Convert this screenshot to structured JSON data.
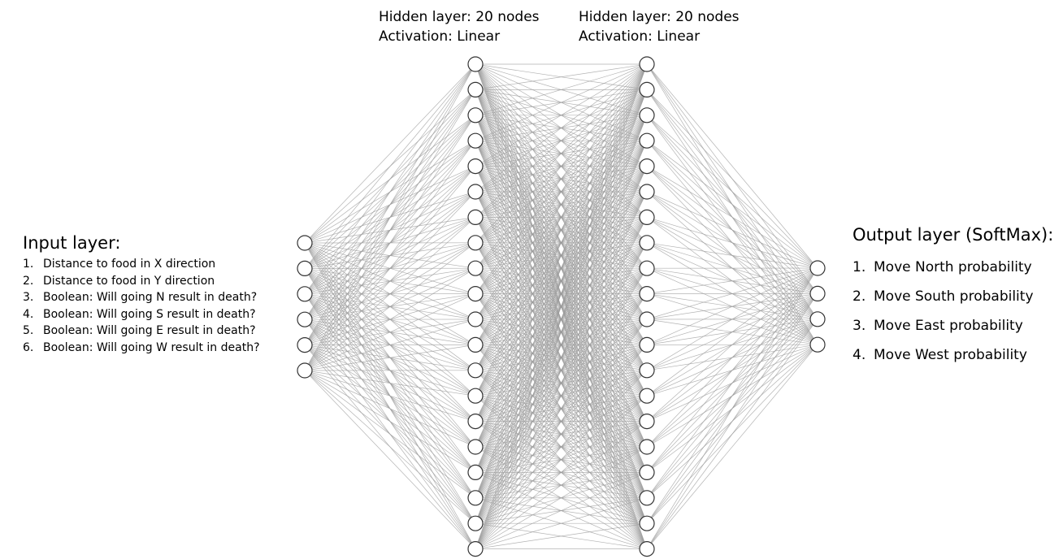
{
  "diagram": {
    "layers": [
      {
        "id": "input",
        "node_count": 6
      },
      {
        "id": "hidden1",
        "node_count": 20
      },
      {
        "id": "hidden2",
        "node_count": 20
      },
      {
        "id": "output",
        "node_count": 4
      }
    ],
    "colors": {
      "edge": "#9a9a9a",
      "node_stroke": "#333333",
      "node_fill": "#ffffff",
      "text": "#000000"
    }
  },
  "hidden1": {
    "title": "Hidden layer: 20 nodes",
    "activation": "Activation: Linear"
  },
  "hidden2": {
    "title": "Hidden layer: 20 nodes",
    "activation": "Activation: Linear"
  },
  "input_layer": {
    "title": "Input layer:",
    "items": [
      {
        "num": "1.",
        "text": "Distance to food in X direction"
      },
      {
        "num": "2.",
        "text": "Distance to food in Y direction"
      },
      {
        "num": "3.",
        "text": "Boolean: Will going N result in death?"
      },
      {
        "num": "4.",
        "text": "Boolean: Will going S result in death?"
      },
      {
        "num": "5.",
        "text": "Boolean: Will going E result in death?"
      },
      {
        "num": "6.",
        "text": "Boolean: Will going W result in death?"
      }
    ]
  },
  "output_layer": {
    "title": "Output layer (SoftMax):",
    "items": [
      {
        "num": "1.",
        "text": "Move North probability"
      },
      {
        "num": "2.",
        "text": "Move South probability"
      },
      {
        "num": "3.",
        "text": "Move East probability"
      },
      {
        "num": "4.",
        "text": "Move West probability"
      }
    ]
  }
}
